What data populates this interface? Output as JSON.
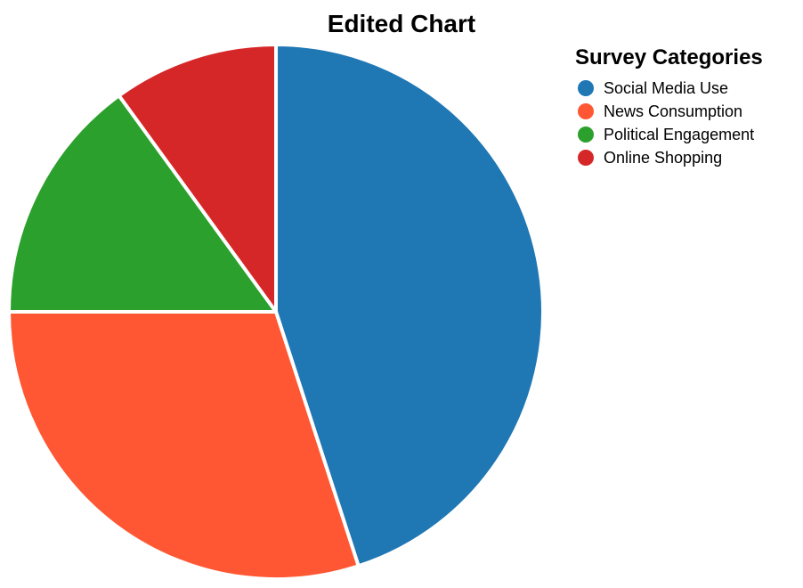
{
  "chart_data": {
    "type": "pie",
    "title": "Edited Chart",
    "legend_title": "Survey Categories",
    "legend_position": "top-right",
    "start_angle_deg": 0,
    "direction": "clockwise",
    "slices": [
      {
        "label": "Social Media Use",
        "value": 45,
        "color": "#1f77b4"
      },
      {
        "label": "News Consumption",
        "value": 30,
        "color": "#ff5733"
      },
      {
        "label": "Political Engagement",
        "value": 15,
        "color": "#2ca02c"
      },
      {
        "label": "Online Shopping",
        "value": 10,
        "color": "#d62728"
      }
    ]
  }
}
